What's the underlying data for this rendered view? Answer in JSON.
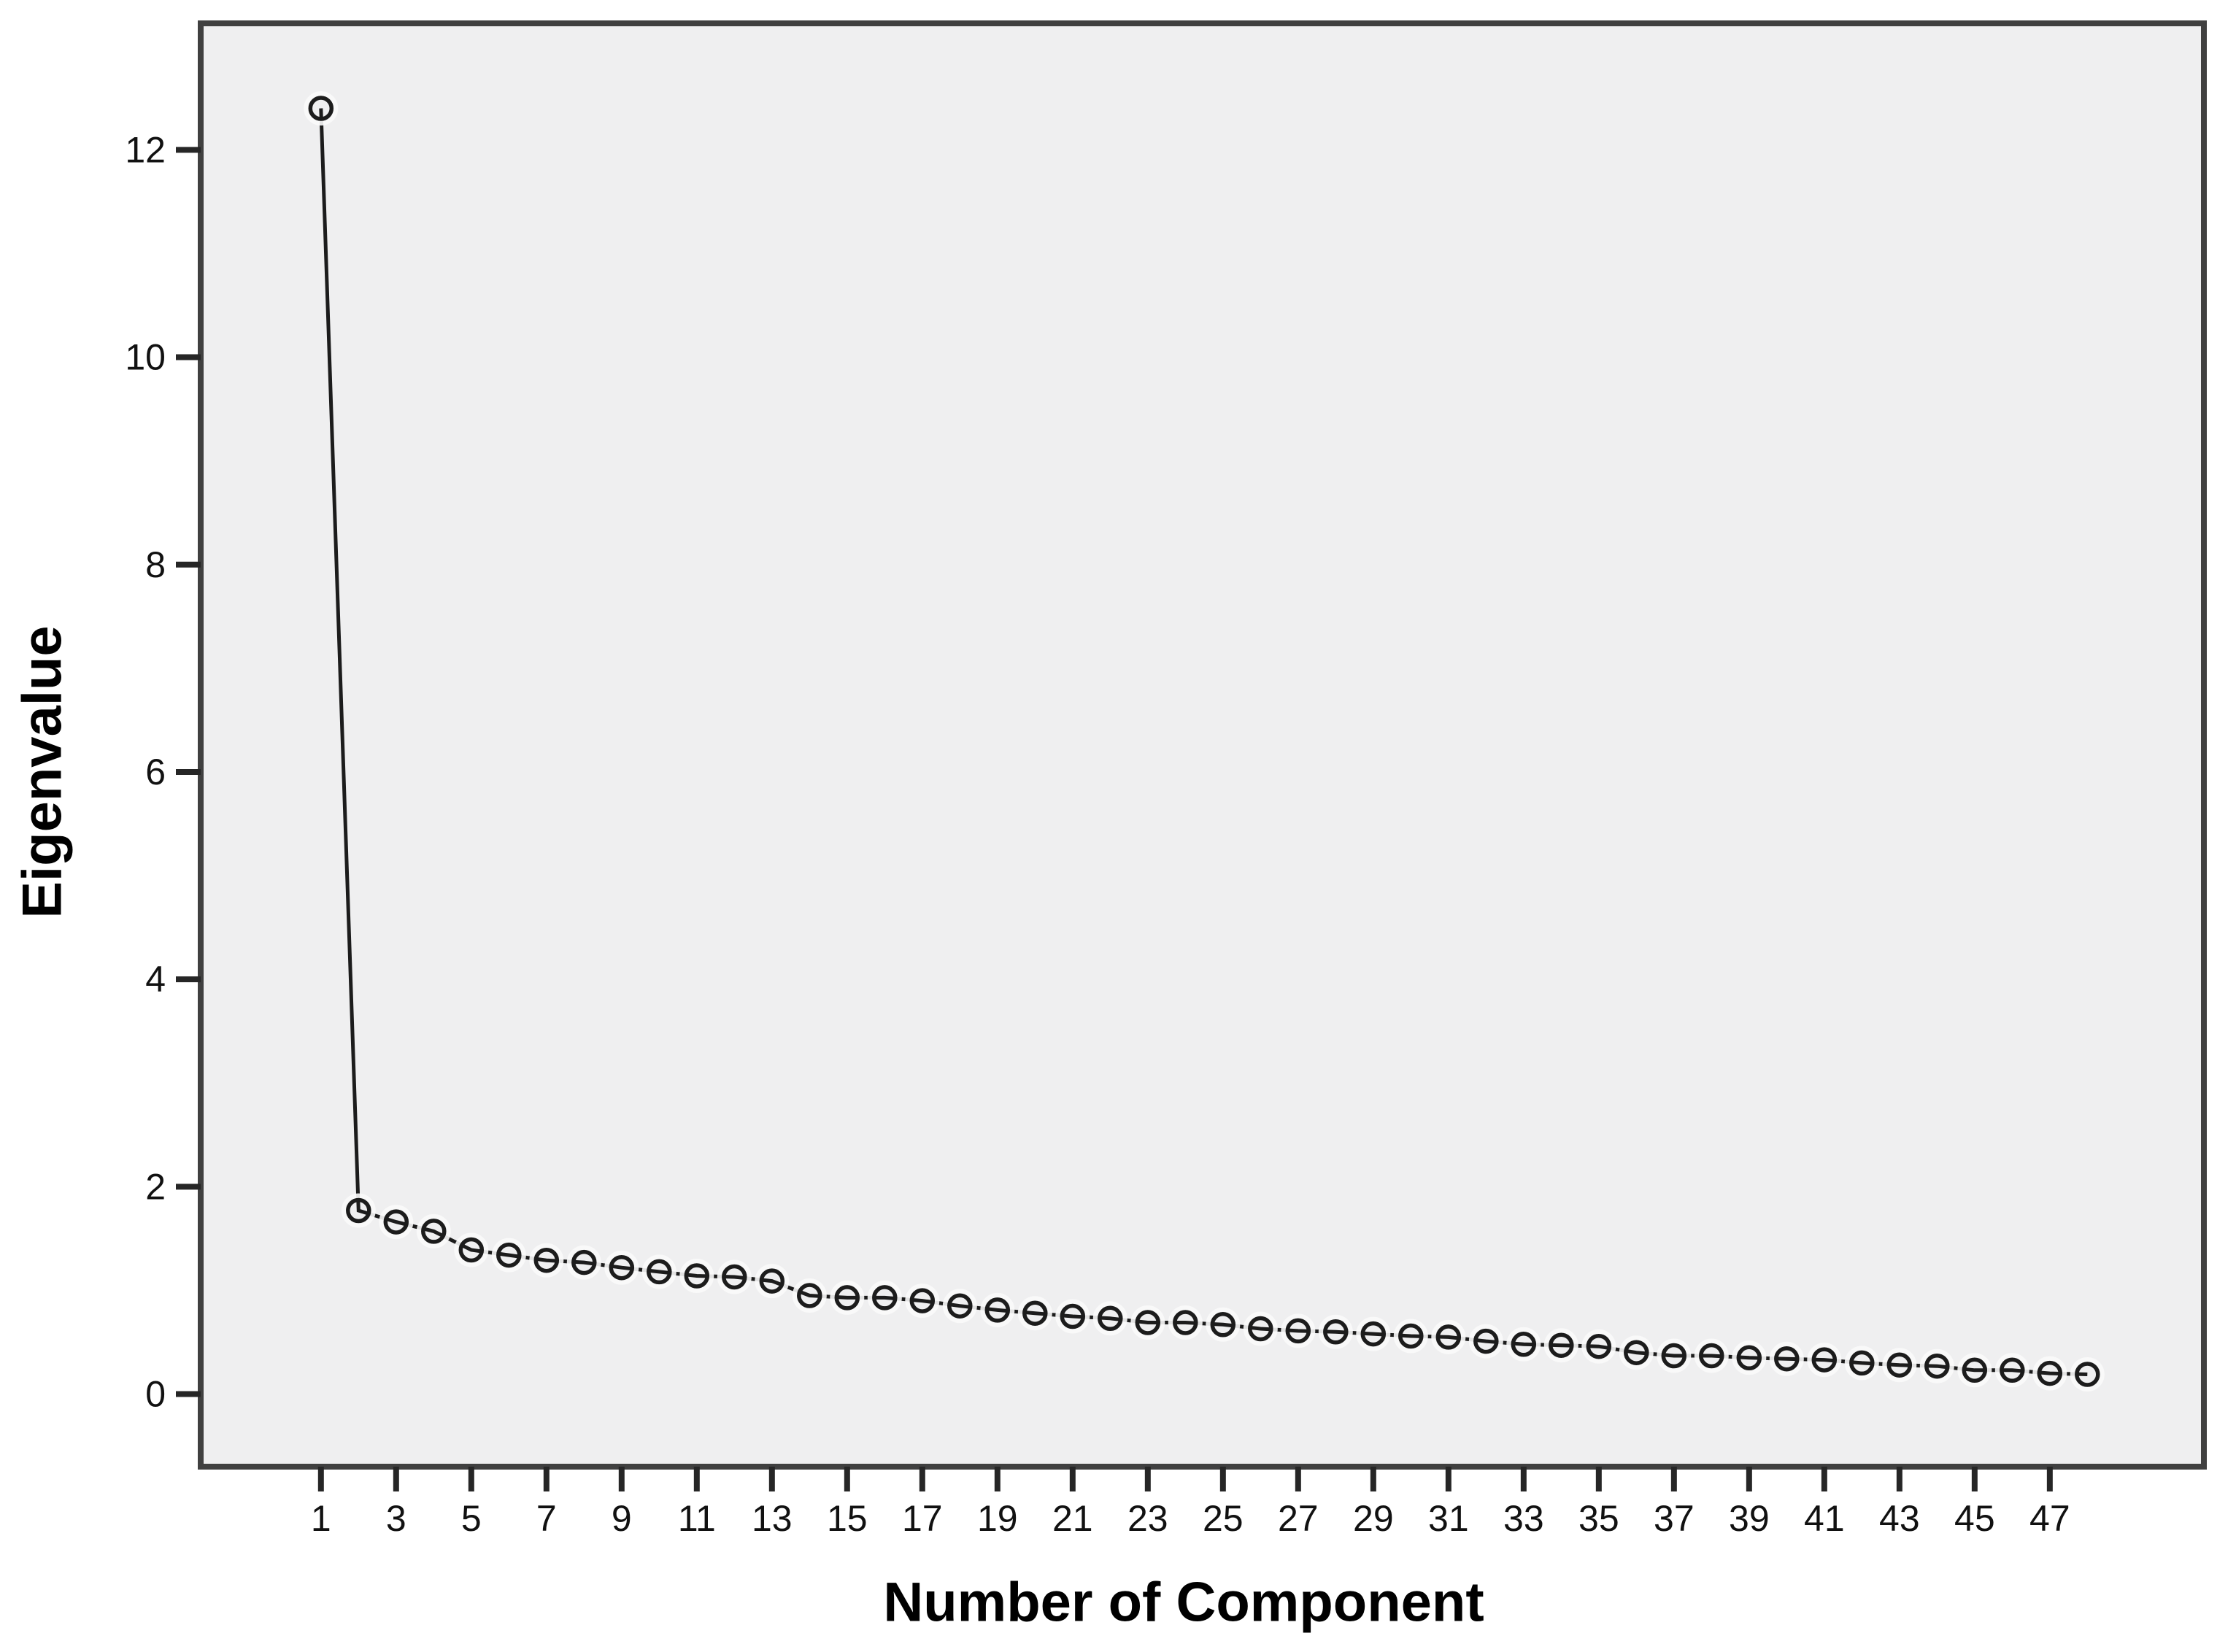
{
  "figure": {
    "page_background": "#ffffff"
  },
  "chart_data": {
    "type": "line",
    "title": "",
    "xlabel": "Number of Component",
    "ylabel": "Eigenvalue",
    "series": [
      {
        "name": "Eigenvalue",
        "x": [
          1,
          2,
          3,
          4,
          5,
          6,
          7,
          8,
          9,
          10,
          11,
          12,
          13,
          14,
          15,
          16,
          17,
          18,
          19,
          20,
          21,
          22,
          23,
          24,
          25,
          26,
          27,
          28,
          29,
          30,
          31,
          32,
          33,
          34,
          35,
          36,
          37,
          38,
          39,
          40,
          41,
          42,
          43,
          44,
          45,
          46,
          47,
          48
        ],
        "values": [
          12.4,
          1.77,
          1.66,
          1.57,
          1.39,
          1.34,
          1.29,
          1.27,
          1.22,
          1.18,
          1.14,
          1.13,
          1.09,
          0.95,
          0.93,
          0.93,
          0.9,
          0.85,
          0.81,
          0.78,
          0.75,
          0.73,
          0.69,
          0.69,
          0.67,
          0.63,
          0.61,
          0.6,
          0.58,
          0.56,
          0.55,
          0.51,
          0.48,
          0.47,
          0.46,
          0.4,
          0.37,
          0.37,
          0.35,
          0.34,
          0.33,
          0.3,
          0.28,
          0.27,
          0.23,
          0.23,
          0.2,
          0.19
        ]
      }
    ],
    "x_ticks": [
      1,
      3,
      5,
      7,
      9,
      11,
      13,
      15,
      17,
      19,
      21,
      23,
      25,
      27,
      29,
      31,
      33,
      35,
      37,
      39,
      41,
      43,
      45,
      47
    ],
    "y_ticks": [
      0,
      2,
      4,
      6,
      8,
      10,
      12
    ],
    "xlim": [
      -2.2,
      51.1
    ],
    "ylim": [
      -0.7,
      13.22
    ],
    "grid": false,
    "legend": "none",
    "marker": "open-circle",
    "colors": {
      "plot_bg": "#efeff0",
      "frame": "#404040",
      "line": "#1c1c1c",
      "marker_ring": "#1c1c1c",
      "marker_halo": "#fafafa",
      "tick": "#262626",
      "tick_label": "#111111",
      "axis_title": "#000000"
    }
  }
}
